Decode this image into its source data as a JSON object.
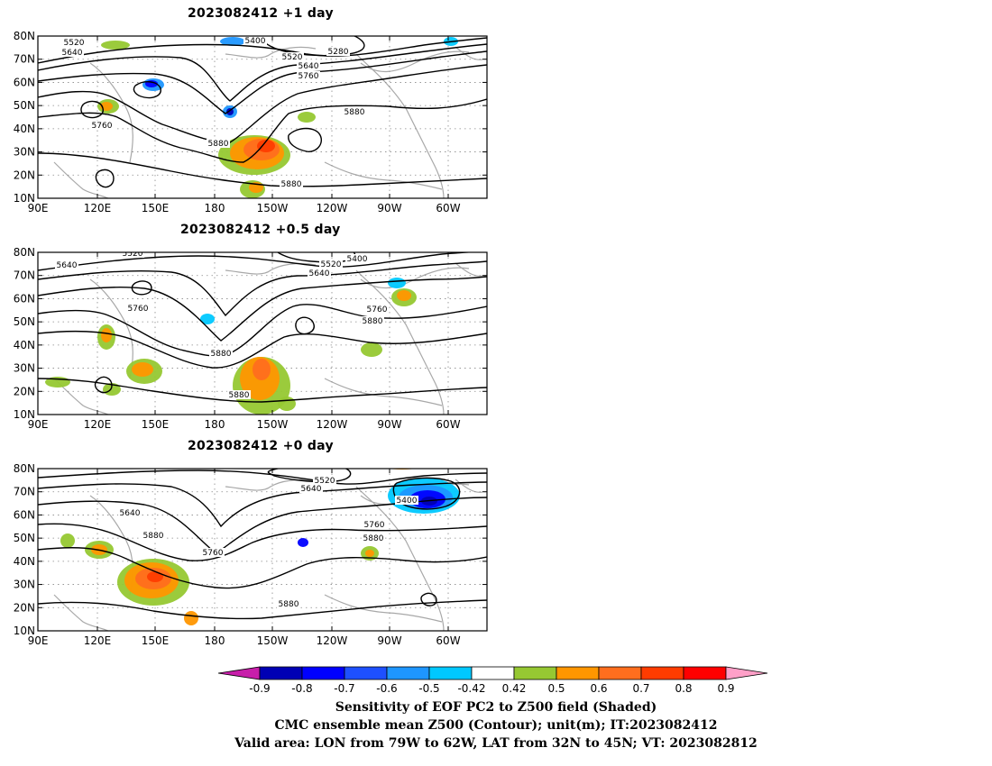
{
  "panels": [
    {
      "title": "2023082412 +1 day",
      "contour_labels": [
        "5520",
        "5640",
        "5400",
        "5280",
        "5520",
        "5640",
        "5760",
        "5760",
        "5880",
        "5880",
        "5880"
      ]
    },
    {
      "title": "2023082412 +0.5 day",
      "contour_labels": [
        "5520",
        "5640",
        "5400",
        "5520",
        "5640",
        "5760",
        "5760",
        "5880",
        "5880",
        "5880"
      ]
    },
    {
      "title": "2023082412 +0 day",
      "contour_labels": [
        "5520",
        "5640",
        "5640",
        "5400",
        "5880",
        "5760",
        "5760",
        "5880",
        "5880"
      ]
    }
  ],
  "axes": {
    "lat_ticks": [
      "80N",
      "70N",
      "60N",
      "50N",
      "40N",
      "30N",
      "20N",
      "10N"
    ],
    "lon_ticks": [
      "90E",
      "120E",
      "150E",
      "180",
      "150W",
      "120W",
      "90W",
      "60W"
    ]
  },
  "colorbar": {
    "tick_labels": [
      "-0.9",
      "-0.8",
      "-0.7",
      "-0.6",
      "-0.5",
      "-0.42",
      "0.42",
      "0.5",
      "0.6",
      "0.7",
      "0.8",
      "0.9"
    ],
    "colors": [
      "#c81eaa",
      "#0000b4",
      "#0000ff",
      "#1e50ff",
      "#1e96ff",
      "#00c8ff",
      "#ffffff",
      "#96c832",
      "#ff9600",
      "#ff6e1e",
      "#ff3c00",
      "#ff0000",
      "#ffa0c8"
    ]
  },
  "caption": {
    "line1": "Sensitivity of EOF PC2 to Z500 field (Shaded)",
    "line2": "CMC ensemble mean Z500 (Contour); unit(m); IT:2023082412",
    "line3": "Valid area: LON from 79W to 62W, LAT from 32N to 45N; VT: 2023082812"
  }
}
